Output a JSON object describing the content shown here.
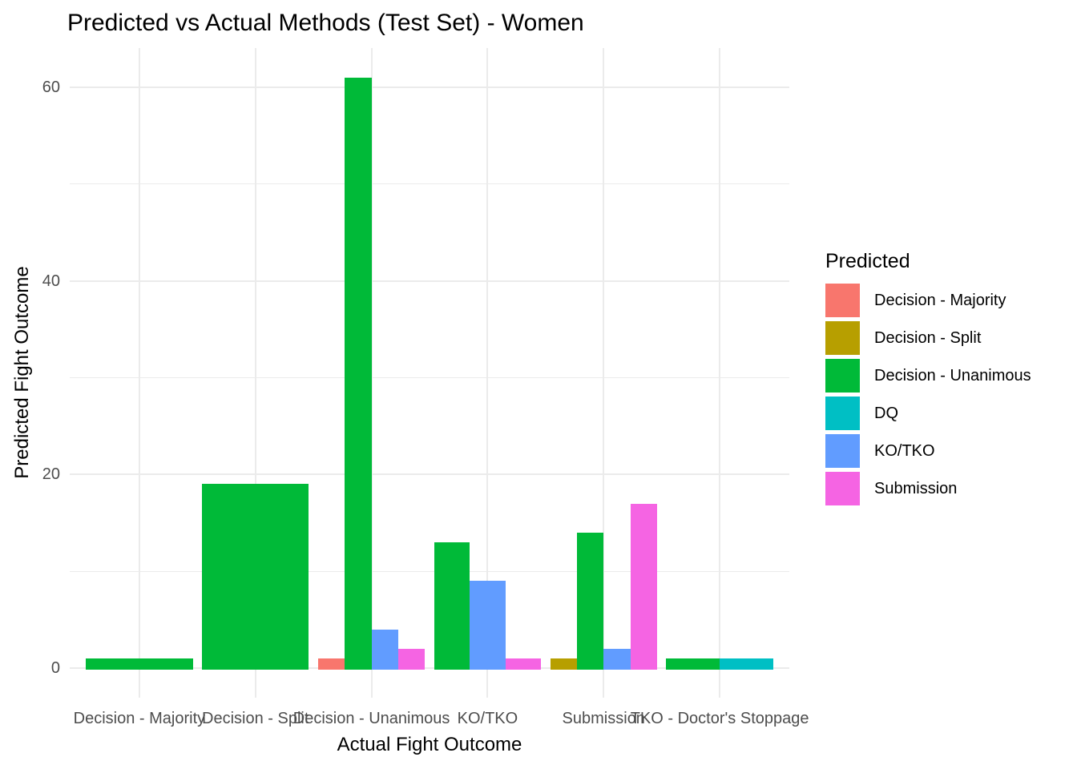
{
  "chart_data": {
    "type": "bar",
    "title": "Predicted vs Actual Methods (Test Set) - Women",
    "xlabel": "Actual Fight Outcome",
    "ylabel": "Predicted Fight Outcome",
    "legend_title": "Predicted",
    "legend_position": "right",
    "grid": true,
    "ylim": [
      0,
      61
    ],
    "yticks": [
      0,
      20,
      40,
      60
    ],
    "yticks_minor": [
      10,
      30,
      50
    ],
    "y_expansion": [
      -3.05,
      64.05
    ],
    "categories": [
      "Decision - Majority",
      "Decision - Split",
      "Decision - Unanimous",
      "KO/TKO",
      "Submission",
      "TKO - Doctor's Stoppage"
    ],
    "series": [
      {
        "name": "Decision - Majority",
        "color": "#F8766D",
        "values": [
          0,
          0,
          1,
          0,
          0,
          0
        ]
      },
      {
        "name": "Decision - Split",
        "color": "#B79F00",
        "values": [
          0,
          0,
          0,
          0,
          1,
          0
        ]
      },
      {
        "name": "Decision - Unanimous",
        "color": "#00BA38",
        "values": [
          1,
          19,
          61,
          13,
          14,
          1
        ]
      },
      {
        "name": "DQ",
        "color": "#00BFC4",
        "values": [
          0,
          0,
          0,
          0,
          0,
          1
        ]
      },
      {
        "name": "KO/TKO",
        "color": "#619CFF",
        "values": [
          0,
          0,
          4,
          9,
          2,
          0
        ]
      },
      {
        "name": "Submission",
        "color": "#F564E3",
        "values": [
          0,
          0,
          2,
          1,
          17,
          0
        ]
      }
    ],
    "dodge_note": "zero values omitted; present bars share 92% of category width",
    "colors": {
      "gridline": "#EBEBEB",
      "tick_text": "#4D4D4D",
      "title_text": "#000000"
    }
  }
}
